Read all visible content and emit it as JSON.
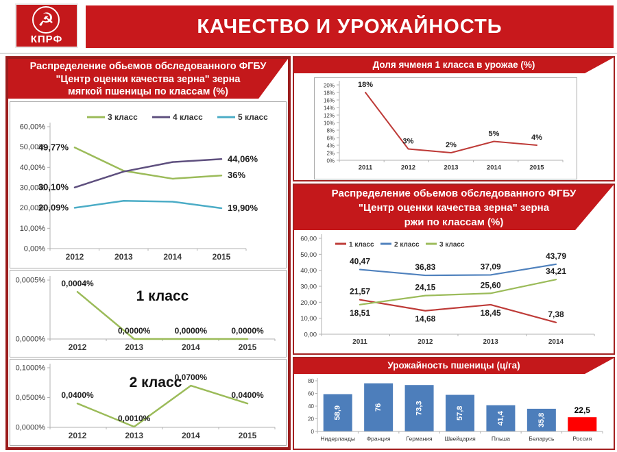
{
  "header": {
    "logo_text": "КПРФ",
    "title": "КАЧЕСТВО И УРОЖАЙНОСТЬ"
  },
  "colors": {
    "header_red": "#c8181c",
    "banner_red": "#c4181b",
    "panel_border_red": "#9b1c1c",
    "line_olive": "#9bbb59",
    "line_purple": "#5e4f7e",
    "line_cyan": "#4bacc6",
    "line_red": "#be3b38",
    "line_blue": "#4f81bd",
    "bar_blue": "#4d7ebb",
    "bar_red_russia": "#ff0000"
  },
  "panels": {
    "wheat": {
      "title_lines": [
        "Распределение  обьемов обследованного ФГБУ",
        "\"Центр оценки качества зерна\" зерна",
        "мягкой пшеницы  по классам (%)"
      ]
    },
    "class1": {
      "inner_title": "1 класс"
    },
    "class2": {
      "inner_title": "2 класс"
    },
    "barley": {
      "title": "Доля ячменя 1 класса  в урожае (%)"
    },
    "rye": {
      "title_lines": [
        "Распределение  обьемов обследованного ФГБУ",
        "\"Центр оценки качества зерна\" зерна",
        "ржи по классам (%)"
      ]
    },
    "yield": {
      "title": "Урожайность пшеницы  (ц/га)"
    }
  },
  "chart_data": [
    {
      "type": "line",
      "title": "Распределение обьемов обследованного ФГБУ \"Центр оценки качества зерна\" зерна мягкой пшеницы по классам (%)",
      "categories": [
        "2012",
        "2013",
        "2014",
        "2015"
      ],
      "ylim": [
        0,
        60
      ],
      "grid": false,
      "legend_position": "top",
      "yticks": [
        {
          "v": 60,
          "label": "60,00%"
        },
        {
          "v": 50,
          "label": "50,00%"
        },
        {
          "v": 40,
          "label": "40,00%"
        },
        {
          "v": 30,
          "label": "30,00%"
        },
        {
          "v": 20,
          "label": "20,00%"
        },
        {
          "v": 10,
          "label": "10,00%"
        },
        {
          "v": 0,
          "label": "0,00%"
        }
      ],
      "series": [
        {
          "name": "3 класс",
          "color": "#9bbb59",
          "values": [
            49.77,
            38.3,
            34.4,
            36.0
          ],
          "point_labels": [
            "49,77%",
            null,
            null,
            "36%"
          ],
          "label_pos": [
            "left",
            null,
            null,
            "right"
          ]
        },
        {
          "name": "4 класс",
          "color": "#5e4f7e",
          "values": [
            30.1,
            37.9,
            42.6,
            44.06
          ],
          "point_labels": [
            "30,10%",
            null,
            null,
            "44,06%"
          ],
          "label_pos": [
            "left",
            null,
            null,
            "right"
          ]
        },
        {
          "name": "5 класс",
          "color": "#4bacc6",
          "values": [
            20.09,
            23.5,
            23.1,
            19.9
          ],
          "point_labels": [
            "20,09%",
            null,
            null,
            "19,90%"
          ],
          "label_pos": [
            "left",
            null,
            null,
            "right"
          ]
        }
      ]
    },
    {
      "type": "line",
      "title": "1 класс",
      "inner_title": "1 класс",
      "categories": [
        "2012",
        "2013",
        "2014",
        "2015"
      ],
      "ylim": [
        0,
        0.0005
      ],
      "grid": false,
      "yticks": [
        {
          "v": 0.0005,
          "label": "0,0005%"
        },
        {
          "v": 0,
          "label": "0,0000%"
        }
      ],
      "series": [
        {
          "name": "1 класс",
          "color": "#9bbb59",
          "values": [
            0.0004,
            0,
            0,
            0
          ],
          "point_labels": [
            "0,0004%",
            "0,0000%",
            "0,0000%",
            "0,0000%"
          ],
          "label_pos": [
            "above",
            "above",
            "above",
            "above"
          ]
        }
      ]
    },
    {
      "type": "line",
      "title": "2 класс",
      "inner_title": "2 класс",
      "categories": [
        "2012",
        "2013",
        "2014",
        "2015"
      ],
      "ylim": [
        0,
        0.1
      ],
      "grid": false,
      "yticks": [
        {
          "v": 0.1,
          "label": "0,1000%"
        },
        {
          "v": 0.05,
          "label": "0,0500%"
        },
        {
          "v": 0,
          "label": "0,0000%"
        }
      ],
      "series": [
        {
          "name": "2 класс",
          "color": "#9bbb59",
          "values": [
            0.04,
            0.001,
            0.07,
            0.04
          ],
          "point_labels": [
            "0,0400%",
            "0,0010%",
            "0,0700%",
            "0,0400%"
          ],
          "label_pos": [
            "above",
            "above",
            "above",
            "above"
          ]
        }
      ]
    },
    {
      "type": "line",
      "title": "Доля ячменя 1 класса в урожае (%)",
      "categories": [
        "2011",
        "2012",
        "2013",
        "2014",
        "2015"
      ],
      "ylim": [
        0,
        20
      ],
      "grid": false,
      "yticks": [
        {
          "v": 20,
          "label": "20%"
        },
        {
          "v": 18,
          "label": "18%"
        },
        {
          "v": 16,
          "label": "16%"
        },
        {
          "v": 14,
          "label": "14%"
        },
        {
          "v": 12,
          "label": "12%"
        },
        {
          "v": 10,
          "label": "10%"
        },
        {
          "v": 8,
          "label": "8%"
        },
        {
          "v": 6,
          "label": "6%"
        },
        {
          "v": 4,
          "label": "4%"
        },
        {
          "v": 2,
          "label": "2%"
        },
        {
          "v": 0,
          "label": "0%"
        }
      ],
      "series": [
        {
          "name": "Доля ячменя 1 класса",
          "color": "#be3b38",
          "values": [
            18,
            3,
            2,
            5,
            4
          ],
          "point_labels": [
            "18%",
            "3%",
            "2%",
            "5%",
            "4%"
          ],
          "label_pos": [
            "above",
            "above",
            "above",
            "above",
            "above"
          ]
        }
      ]
    },
    {
      "type": "line",
      "title": "Распределение обьемов обследованного ФГБУ \"Центр оценки качества зерна\" зерна ржи по классам (%)",
      "categories": [
        "2011",
        "2012",
        "2013",
        "2014"
      ],
      "ylim": [
        0,
        60
      ],
      "grid": false,
      "legend_position": "top-left",
      "yticks": [
        {
          "v": 60,
          "label": "60,00"
        },
        {
          "v": 50,
          "label": "50,00"
        },
        {
          "v": 40,
          "label": "40,00"
        },
        {
          "v": 30,
          "label": "30,00"
        },
        {
          "v": 20,
          "label": "20,00"
        },
        {
          "v": 10,
          "label": "10,00"
        },
        {
          "v": 0,
          "label": "0,00"
        }
      ],
      "series": [
        {
          "name": "1 класс",
          "color": "#be3b38",
          "values": [
            21.57,
            14.68,
            18.45,
            7.38
          ],
          "point_labels": [
            "21,57",
            "14,68",
            "18,45",
            "7,38"
          ],
          "label_pos": [
            "above",
            "below",
            "below",
            "above"
          ]
        },
        {
          "name": "2 класс",
          "color": "#4f81bd",
          "values": [
            40.47,
            36.83,
            37.09,
            43.79
          ],
          "point_labels": [
            "40,47",
            "36,83",
            "37,09",
            "43,79"
          ],
          "label_pos": [
            "above",
            "above",
            "above",
            "above"
          ]
        },
        {
          "name": "3 класс",
          "color": "#9bbb59",
          "values": [
            18.51,
            24.15,
            25.6,
            34.21
          ],
          "point_labels": [
            "18,51",
            "24,15",
            "25,60",
            "34,21"
          ],
          "label_pos": [
            "below",
            "above",
            "above",
            "above"
          ]
        }
      ]
    },
    {
      "type": "bar",
      "title": "Урожайность пшеницы (ц/га)",
      "categories": [
        "Нидерланды",
        "Франция",
        "Германия",
        "Швейцария",
        "Пльша",
        "Беларусь",
        "Россия"
      ],
      "values": [
        58.9,
        76,
        73.3,
        57.8,
        41.4,
        35.8,
        22.5
      ],
      "value_labels": [
        "58,9",
        "76",
        "73,3",
        "57,8",
        "41,4",
        "35,8",
        "22,5"
      ],
      "bar_colors": [
        "#4d7ebb",
        "#4d7ebb",
        "#4d7ebb",
        "#4d7ebb",
        "#4d7ebb",
        "#4d7ebb",
        "#ff0000"
      ],
      "label_style": [
        "inside",
        "inside",
        "inside",
        "inside",
        "inside",
        "inside",
        "above"
      ],
      "ylim": [
        0,
        80
      ],
      "grid": false,
      "yticks": [
        {
          "v": 80,
          "label": "80"
        },
        {
          "v": 60,
          "label": "60"
        },
        {
          "v": 40,
          "label": "40"
        },
        {
          "v": 20,
          "label": "20"
        },
        {
          "v": 0,
          "label": "0"
        }
      ]
    }
  ]
}
